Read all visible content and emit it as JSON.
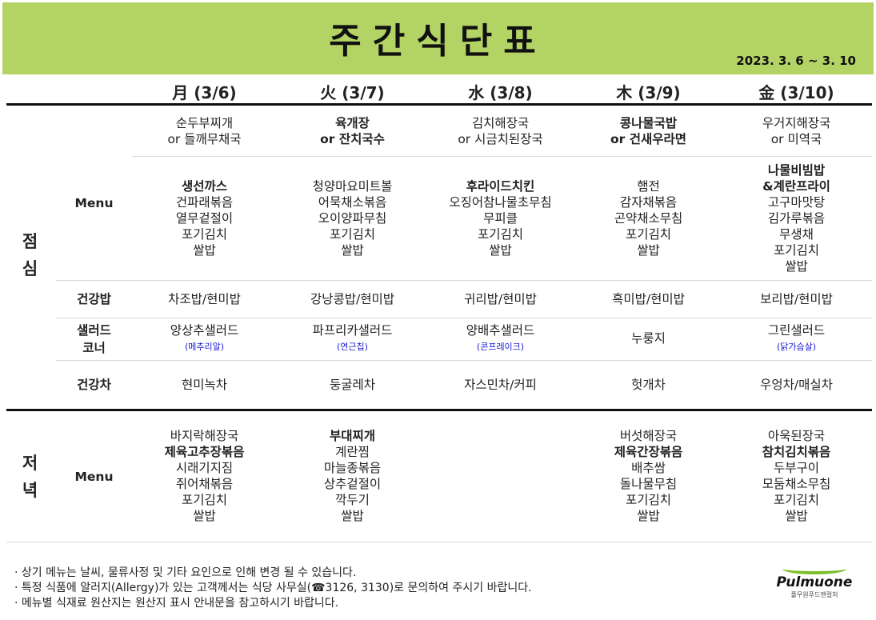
{
  "header": {
    "title": "주간식단표",
    "period": "2023. 3. 6 ~ 3. 10",
    "banner_color": "#b3d465"
  },
  "days": [
    "月 (3/6)",
    "火 (3/7)",
    "水 (3/8)",
    "木 (3/9)",
    "金 (3/10)"
  ],
  "sections": {
    "lunch": "점\n심",
    "dinner": "저\n녁"
  },
  "labels": {
    "menu": "Menu",
    "rice": "건강밥",
    "salad": "샐러드\n코너",
    "tea": "건강차",
    "dinner_menu": "Menu"
  },
  "lunch": {
    "soup": [
      [
        {
          "t": "순두부찌개",
          "b": false
        },
        {
          "t": "or 들깨무채국",
          "b": false
        }
      ],
      [
        {
          "t": "육개장",
          "b": true
        },
        {
          "t": "or 잔치국수",
          "b": true
        }
      ],
      [
        {
          "t": "김치해장국",
          "b": false
        },
        {
          "t": "or 시금치된장국",
          "b": false
        }
      ],
      [
        {
          "t": "콩나물국밥",
          "b": true
        },
        {
          "t": "or 건새우라면",
          "b": true
        }
      ],
      [
        {
          "t": "우거지해장국",
          "b": false
        },
        {
          "t": "or 미역국",
          "b": false
        }
      ]
    ],
    "main": [
      [
        {
          "t": "생선까스",
          "b": true
        },
        {
          "t": "건파래볶음",
          "b": false
        },
        {
          "t": "열무겉절이",
          "b": false
        },
        {
          "t": "포기김치",
          "b": false
        },
        {
          "t": "쌀밥",
          "b": false
        }
      ],
      [
        {
          "t": "청양마요미트볼",
          "b": false
        },
        {
          "t": "어묵채소볶음",
          "b": false
        },
        {
          "t": "오이양파무침",
          "b": false
        },
        {
          "t": "포기김치",
          "b": false
        },
        {
          "t": "쌀밥",
          "b": false
        }
      ],
      [
        {
          "t": "후라이드치킨",
          "b": true
        },
        {
          "t": "오징어참나물초무침",
          "b": false
        },
        {
          "t": "무피클",
          "b": false
        },
        {
          "t": "포기김치",
          "b": false
        },
        {
          "t": "쌀밥",
          "b": false
        }
      ],
      [
        {
          "t": "햄전",
          "b": false
        },
        {
          "t": "감자채볶음",
          "b": false
        },
        {
          "t": "곤약채소무침",
          "b": false
        },
        {
          "t": "포기김치",
          "b": false
        },
        {
          "t": "쌀밥",
          "b": false
        }
      ],
      [
        {
          "t": "나물비빔밥",
          "b": true
        },
        {
          "t": "&계란프라이",
          "b": true
        },
        {
          "t": "고구마맛탕",
          "b": false
        },
        {
          "t": "김가루볶음",
          "b": false
        },
        {
          "t": "무생채",
          "b": false
        },
        {
          "t": "포기김치",
          "b": false
        },
        {
          "t": "쌀밥",
          "b": false
        }
      ]
    ],
    "rice": [
      "차조밥/현미밥",
      "강낭콩밥/현미밥",
      "귀리밥/현미밥",
      "흑미밥/현미밥",
      "보리밥/현미밥"
    ],
    "salad": [
      {
        "name": "양상추샐러드",
        "note": "(메추리알)"
      },
      {
        "name": "파프리카샐러드",
        "note": "(연근칩)"
      },
      {
        "name": "양배추샐러드",
        "note": "(콘프레이크)"
      },
      {
        "name": "누룽지",
        "note": ""
      },
      {
        "name": "그린샐러드",
        "note": "(닭가슴살)"
      }
    ],
    "tea": [
      "현미녹차",
      "둥굴레차",
      "자스민차/커피",
      "헛개차",
      "우엉차/매실차"
    ]
  },
  "dinner": [
    [
      {
        "t": "바지락해장국",
        "b": false
      },
      {
        "t": "제육고추장볶음",
        "b": true
      },
      {
        "t": "시래기지짐",
        "b": false
      },
      {
        "t": "쥐어채볶음",
        "b": false
      },
      {
        "t": "포기김치",
        "b": false
      },
      {
        "t": "쌀밥",
        "b": false
      }
    ],
    [
      {
        "t": "부대찌개",
        "b": true
      },
      {
        "t": "계란찜",
        "b": false
      },
      {
        "t": "마늘종볶음",
        "b": false
      },
      {
        "t": "상추겉절이",
        "b": false
      },
      {
        "t": "깍두기",
        "b": false
      },
      {
        "t": "쌀밥",
        "b": false
      }
    ],
    [],
    [
      {
        "t": "버섯해장국",
        "b": false
      },
      {
        "t": "제육간장볶음",
        "b": true
      },
      {
        "t": "배추쌈",
        "b": false
      },
      {
        "t": "돌나물무침",
        "b": false
      },
      {
        "t": "포기김치",
        "b": false
      },
      {
        "t": "쌀밥",
        "b": false
      }
    ],
    [
      {
        "t": "아욱된장국",
        "b": false
      },
      {
        "t": "참치김치볶음",
        "b": true
      },
      {
        "t": "두부구이",
        "b": false
      },
      {
        "t": "모둠채소무침",
        "b": false
      },
      {
        "t": "포기김치",
        "b": false
      },
      {
        "t": "쌀밥",
        "b": false
      }
    ]
  ],
  "footer": {
    "notes": [
      "· 상기 메뉴는 날씨, 물류사정 및 기타 요인으로 인해 변경 될 수 있습니다.",
      "· 특정 식품에 알러지(Allergy)가 있는 고객께서는 식당 사무실(☎3126, 3130)로 문의하여 주시기 바랍니다.",
      "· 메뉴별 식재료 원산지는 원산지 표시 안내문을 참고하시기 바랍니다."
    ],
    "logo": {
      "name": "Pulmuone",
      "sub": "풀무원푸드앤컬처"
    }
  }
}
